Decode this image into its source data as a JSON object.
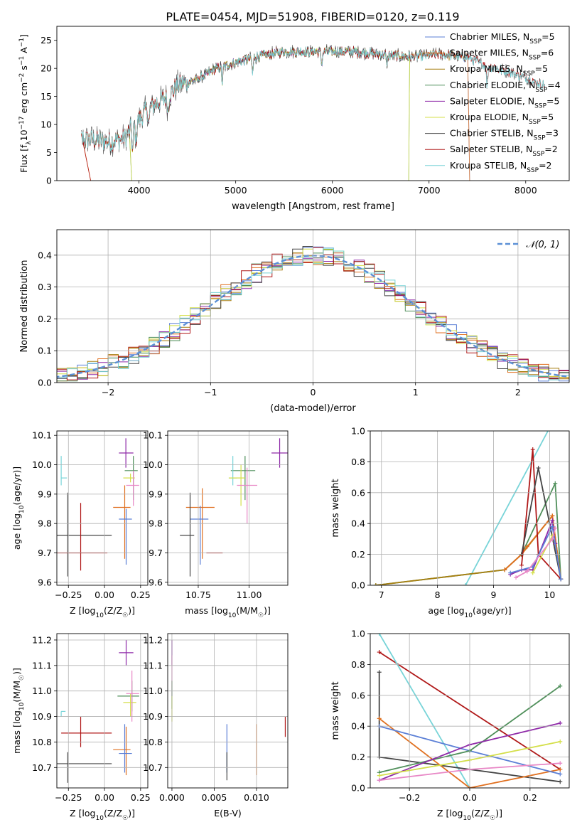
{
  "figure": {
    "title": "PLATE=0454, MJD=51908, FIBERID=0120, z=0.119"
  },
  "model_colors": [
    "#5b7fd6",
    "#e07020",
    "#a77f10",
    "#4f8f5a",
    "#8f2aa8",
    "#d4df4a",
    "#444444",
    "#b01818",
    "#78d4d8"
  ],
  "extra_colors": {
    "pink": "#e887c6",
    "gray": "#888888",
    "normal_curve": "#5b8fd6"
  },
  "chart_data": [
    {
      "id": "spectrum",
      "type": "line",
      "title": "PLATE=0454, MJD=51908, FIBERID=0120, z=0.119",
      "xlabel": "wavelength [Angstrom, rest frame]",
      "ylabel": "Flux [f_λ10^-17 erg cm^-2 s^-1 A^-1]",
      "xlim": [
        3150,
        8450
      ],
      "ylim": [
        0,
        27.5
      ],
      "xticks": [
        4000,
        5000,
        6000,
        7000,
        8000
      ],
      "yticks": [
        0,
        5,
        10,
        15,
        20,
        25
      ],
      "grid": false,
      "legend_position": "right",
      "series": [
        {
          "name": "Chabrier MILES, N_SSP=5",
          "x_range": [
            3400,
            7400
          ]
        },
        {
          "name": "Salpeter MILES, N_SSP=6",
          "x_range": [
            3400,
            7400
          ]
        },
        {
          "name": "Kroupa MILES, N_SSP=5",
          "x_range": [
            3400,
            7400
          ]
        },
        {
          "name": "Chabrier ELODIE, N_SSP=4",
          "x_range": [
            3900,
            6800
          ]
        },
        {
          "name": "Salpeter ELODIE, N_SSP=5",
          "x_range": [
            3900,
            6800
          ]
        },
        {
          "name": "Kroupa ELODIE, N_SSP=5",
          "x_range": [
            3900,
            6800
          ]
        },
        {
          "name": "Chabrier STELIB, N_SSP=3",
          "x_range": [
            3400,
            8200
          ]
        },
        {
          "name": "Salpeter STELIB, N_SSP=2",
          "x_range": [
            3400,
            8200
          ]
        },
        {
          "name": "Kroupa STELIB, N_SSP=2",
          "x_range": [
            3400,
            8200
          ]
        }
      ],
      "continuum_points": [
        [
          3400,
          7.5
        ],
        [
          3700,
          7
        ],
        [
          3850,
          7.5
        ],
        [
          3950,
          10
        ],
        [
          4100,
          13
        ],
        [
          4300,
          15
        ],
        [
          4400,
          17
        ],
        [
          4600,
          18
        ],
        [
          4800,
          20
        ],
        [
          5000,
          21
        ],
        [
          5200,
          22
        ],
        [
          5500,
          23
        ],
        [
          5800,
          23
        ],
        [
          6200,
          23
        ],
        [
          6500,
          22.5
        ],
        [
          6800,
          22
        ],
        [
          7100,
          22.5
        ],
        [
          7400,
          22
        ],
        [
          7600,
          20.5
        ],
        [
          7900,
          19
        ],
        [
          8200,
          17
        ]
      ]
    },
    {
      "id": "residual_histogram",
      "type": "histogram",
      "xlabel": "(data-model)/error",
      "ylabel": "Normed distribution",
      "xlim": [
        -2.5,
        2.5
      ],
      "ylim": [
        0,
        0.48
      ],
      "xticks": [
        -2,
        -1,
        0,
        1,
        2
      ],
      "xtick_labels": [
        "−2",
        "−1",
        "0",
        "1",
        "2"
      ],
      "yticks": [
        0,
        0.1,
        0.2,
        0.3,
        0.4
      ],
      "ytick_labels": [
        "0.0",
        "0.1",
        "0.2",
        "0.3",
        "0.4"
      ],
      "grid": true,
      "bin_width": 0.1,
      "legend": [
        "𝒩(0, 1)"
      ],
      "legend_position": "top-right"
    },
    {
      "id": "age_vs_Z",
      "type": "scatter",
      "xlabel": "Z [log10(Z/Z☉)]",
      "ylabel": "age  [log10(age/yr)]",
      "xlim": [
        -0.33,
        0.3
      ],
      "ylim": [
        9.59,
        10.115
      ],
      "xticks": [
        -0.25,
        0,
        0.25
      ],
      "xtick_labels": [
        "−0.25",
        "0.00",
        "0.25"
      ],
      "yticks": [
        9.6,
        9.7,
        9.8,
        9.9,
        10.0,
        10.1
      ],
      "ytick_labels": [
        "9.6",
        "9.7",
        "9.8",
        "9.9",
        "10.0",
        "10.1"
      ],
      "points": [
        {
          "x": 0.148,
          "y": 10.04,
          "x0": 0.1,
          "x1": 0.2,
          "y0": 9.99,
          "y1": 10.09,
          "c": 4
        },
        {
          "x": 0.2,
          "y": 9.98,
          "x0": 0.14,
          "x1": 0.23,
          "y0": 9.88,
          "y1": 10.03,
          "c": 3
        },
        {
          "x": -0.3,
          "y": 9.955,
          "x0": -0.3,
          "x1": -0.26,
          "y0": 9.93,
          "y1": 10.03,
          "c": 8
        },
        {
          "x": 0.18,
          "y": 9.955,
          "x0": 0.13,
          "x1": 0.21,
          "y0": 9.94,
          "y1": 9.97,
          "c": 5
        },
        {
          "x": 0.2,
          "y": 9.93,
          "x0": 0.15,
          "x1": 0.24,
          "y0": 9.86,
          "y1": 9.98,
          "c": "pink"
        },
        {
          "x": 0.14,
          "y": 9.855,
          "x0": 0.06,
          "x1": 0.18,
          "y0": 9.68,
          "y1": 9.93,
          "c": 1
        },
        {
          "x": 0.15,
          "y": 9.815,
          "x0": 0.1,
          "x1": 0.19,
          "y0": 9.66,
          "y1": 9.85,
          "c": 0
        },
        {
          "x": -0.255,
          "y": 9.76,
          "x0": -0.33,
          "x1": 0.05,
          "y0": 9.62,
          "y1": 9.905,
          "c": 6
        },
        {
          "x": -0.165,
          "y": 9.7,
          "x0": -0.33,
          "x1": 0.02,
          "y0": 9.64,
          "y1": 9.87,
          "c": 7
        }
      ]
    },
    {
      "id": "age_vs_mass",
      "type": "scatter",
      "xlabel": "mass [log10(M/M☉)]",
      "ylabel": "",
      "xlim": [
        10.6,
        11.19
      ],
      "ylim": [
        9.59,
        10.115
      ],
      "xticks": [
        10.75,
        11.0
      ],
      "xtick_labels": [
        "10.75",
        "11.00"
      ],
      "yticks": [
        9.6,
        9.7,
        9.8,
        9.9,
        10.0,
        10.1
      ],
      "ytick_labels": [
        "9.6",
        "9.7",
        "9.8",
        "9.9",
        "10.0",
        "10.1"
      ],
      "points": [
        {
          "x": 11.15,
          "y": 10.04,
          "x0": 11.11,
          "x1": 11.19,
          "y0": 9.99,
          "y1": 10.09,
          "c": 4
        },
        {
          "x": 10.98,
          "y": 9.98,
          "x0": 10.91,
          "x1": 11.03,
          "y0": 9.88,
          "y1": 10.03,
          "c": 3
        },
        {
          "x": 10.92,
          "y": 9.955,
          "x0": 10.9,
          "x1": 10.94,
          "y0": 9.93,
          "y1": 10.03,
          "c": 8
        },
        {
          "x": 10.96,
          "y": 9.955,
          "x0": 10.9,
          "x1": 10.98,
          "y0": 9.86,
          "y1": 10.0,
          "c": 5
        },
        {
          "x": 10.99,
          "y": 9.93,
          "x0": 10.94,
          "x1": 11.04,
          "y0": 9.8,
          "y1": 9.99,
          "c": "pink"
        },
        {
          "x": 10.77,
          "y": 9.855,
          "x0": 10.69,
          "x1": 10.83,
          "y0": 9.68,
          "y1": 9.92,
          "c": 1
        },
        {
          "x": 10.76,
          "y": 9.815,
          "x0": 10.71,
          "x1": 10.8,
          "y0": 9.66,
          "y1": 9.86,
          "c": 0
        },
        {
          "x": 10.71,
          "y": 9.76,
          "x0": 10.66,
          "x1": 10.73,
          "y0": 9.62,
          "y1": 9.905,
          "c": 6
        },
        {
          "x": 10.83,
          "y": 9.7,
          "x0": 10.79,
          "x1": 10.87,
          "y0": 9.7,
          "y1": 9.7,
          "c": 7
        }
      ]
    },
    {
      "id": "mass_weight_vs_age",
      "type": "line",
      "xlabel": "age  [log10(age/yr)]",
      "ylabel": "mass weight",
      "xlim": [
        6.8,
        10.35
      ],
      "ylim": [
        0,
        1.0
      ],
      "xticks": [
        7,
        8,
        9,
        10
      ],
      "xtick_labels": [
        "7",
        "8",
        "9",
        "10"
      ],
      "yticks": [
        0,
        0.2,
        0.4,
        0.6,
        0.8,
        1.0
      ],
      "ytick_labels": [
        "0.0",
        "0.2",
        "0.4",
        "0.6",
        "0.8",
        "1.0"
      ],
      "series": [
        {
          "c": 8,
          "points": [
            [
              8.5,
              0
            ],
            [
              10.0,
              1.02
            ]
          ]
        },
        {
          "c": 3,
          "points": [
            [
              6.9,
              0
            ],
            [
              9.2,
              0.1
            ],
            [
              9.5,
              0.2
            ],
            [
              10.1,
              0.66
            ],
            [
              10.2,
              0.04
            ]
          ]
        },
        {
          "c": 2,
          "points": [
            [
              6.9,
              0
            ],
            [
              9.2,
              0.1
            ],
            [
              9.5,
              0.2
            ],
            [
              10.05,
              0.45
            ],
            [
              10.2,
              0.04
            ]
          ]
        },
        {
          "c": 1,
          "points": [
            [
              9.2,
              0.1
            ],
            [
              9.5,
              0.2
            ],
            [
              9.6,
              0.25
            ],
            [
              10.05,
              0.45
            ],
            [
              10.2,
              0.04
            ]
          ]
        },
        {
          "c": 7,
          "points": [
            [
              9.5,
              0.13
            ],
            [
              9.7,
              0.88
            ],
            [
              9.8,
              0.2
            ],
            [
              10.2,
              0.04
            ]
          ]
        },
        {
          "c": 6,
          "points": [
            [
              9.5,
              0.2
            ],
            [
              9.8,
              0.76
            ],
            [
              10.2,
              0.04
            ]
          ]
        },
        {
          "c": 4,
          "points": [
            [
              9.3,
              0.07
            ],
            [
              9.5,
              0.1
            ],
            [
              9.7,
              0.1
            ],
            [
              10.05,
              0.42
            ],
            [
              10.1,
              0.27
            ]
          ]
        },
        {
          "c": 0,
          "points": [
            [
              9.3,
              0.08
            ],
            [
              9.7,
              0.12
            ],
            [
              10.05,
              0.38
            ],
            [
              10.2,
              0.04
            ]
          ]
        },
        {
          "c": 5,
          "points": [
            [
              9.7,
              0.08
            ],
            [
              10.05,
              0.32
            ]
          ]
        },
        {
          "c": "pink",
          "points": [
            [
              9.4,
              0.05
            ],
            [
              9.6,
              0.09
            ],
            [
              10.05,
              0.3
            ],
            [
              10.1,
              0.37
            ]
          ]
        }
      ]
    },
    {
      "id": "mass_vs_Z",
      "type": "scatter",
      "xlabel": "Z [log10(Z/Z☉)]",
      "ylabel": "mass [log10(M/M☉)]",
      "xlim": [
        -0.33,
        0.3
      ],
      "ylim": [
        10.62,
        11.225
      ],
      "xticks": [
        -0.25,
        0,
        0.25
      ],
      "xtick_labels": [
        "−0.25",
        "0.00",
        "0.25"
      ],
      "yticks": [
        10.7,
        10.8,
        10.9,
        11.0,
        11.1,
        11.2
      ],
      "ytick_labels": [
        "10.7",
        "10.8",
        "10.9",
        "11.0",
        "11.1",
        "11.2"
      ],
      "points": [
        {
          "x": 0.15,
          "y": 11.15,
          "x0": 0.1,
          "x1": 0.2,
          "y0": 11.1,
          "y1": 11.2,
          "c": 4
        },
        {
          "x": 0.19,
          "y": 10.98,
          "x0": 0.09,
          "x1": 0.24,
          "y0": 10.92,
          "y1": 11.04,
          "c": 3
        },
        {
          "x": -0.3,
          "y": 10.92,
          "x0": -0.3,
          "x1": -0.27,
          "y0": 10.9,
          "y1": 10.92,
          "c": 8
        },
        {
          "x": 0.18,
          "y": 10.955,
          "x0": 0.13,
          "x1": 0.22,
          "y0": 10.9,
          "y1": 10.99,
          "c": 5
        },
        {
          "x": 0.19,
          "y": 10.99,
          "x0": 0.15,
          "x1": 0.24,
          "y0": 10.88,
          "y1": 11.08,
          "c": "pink"
        },
        {
          "x": 0.15,
          "y": 10.77,
          "x0": 0.06,
          "x1": 0.18,
          "y0": 10.67,
          "y1": 10.86,
          "c": 1
        },
        {
          "x": 0.14,
          "y": 10.755,
          "x0": 0.1,
          "x1": 0.19,
          "y0": 10.68,
          "y1": 10.87,
          "c": 0
        },
        {
          "x": -0.255,
          "y": 10.715,
          "x0": -0.33,
          "x1": 0.05,
          "y0": 10.64,
          "y1": 10.76,
          "c": 6
        },
        {
          "x": -0.165,
          "y": 10.835,
          "x0": -0.3,
          "x1": 0.05,
          "y0": 10.78,
          "y1": 10.9,
          "c": 7
        }
      ]
    },
    {
      "id": "mass_vs_EBV",
      "type": "scatter",
      "xlabel": "E(B-V)",
      "ylabel": "",
      "xlim": [
        -0.0005,
        0.0137
      ],
      "ylim": [
        10.62,
        11.225
      ],
      "xticks": [
        0,
        0.005,
        0.01
      ],
      "xtick_labels": [
        "0.000",
        "0.005",
        "0.010"
      ],
      "yticks": [
        10.7,
        10.8,
        10.9,
        11.0,
        11.1,
        11.2
      ],
      "ytick_labels": [
        "10.7",
        "10.8",
        "10.9",
        "11.0",
        "11.1",
        "11.2"
      ],
      "points": [
        {
          "x": 0.0,
          "y": 11.15,
          "x0": 0.0,
          "x1": 0.0,
          "y0": 11.1,
          "y1": 11.2,
          "c": 4
        },
        {
          "x": 0.0,
          "y": 11.07,
          "x0": 0.0,
          "x1": 0.0,
          "y0": 10.98,
          "y1": 11.14,
          "c": "pink"
        },
        {
          "x": 0.0,
          "y": 10.98,
          "x0": 0.0,
          "x1": 0.0,
          "y0": 10.93,
          "y1": 11.04,
          "c": 3
        },
        {
          "x": 0.0,
          "y": 10.93,
          "x0": 0.0,
          "x1": 0.0,
          "y0": 10.88,
          "y1": 10.98,
          "c": 5
        },
        {
          "x": 0.0065,
          "y": 10.77,
          "x0": 0.0065,
          "x1": 0.0065,
          "y0": 10.68,
          "y1": 10.87,
          "c": 0
        },
        {
          "x": 0.0065,
          "y": 10.715,
          "x0": 0.0065,
          "x1": 0.0065,
          "y0": 10.65,
          "y1": 10.76,
          "c": 6
        },
        {
          "x": 0.01,
          "y": 10.77,
          "x0": 0.01,
          "x1": 0.01,
          "y0": 10.67,
          "y1": 10.87,
          "c": 1
        },
        {
          "x": 0.0134,
          "y": 10.86,
          "x0": 0.0134,
          "x1": 0.0134,
          "y0": 10.82,
          "y1": 10.9,
          "c": 7
        }
      ]
    },
    {
      "id": "mass_weight_vs_Z",
      "type": "line",
      "xlabel": "Z [log10(Z/Z☉)]",
      "ylabel": "mass weight",
      "xlim": [
        -0.33,
        0.33
      ],
      "ylim": [
        0,
        1.0
      ],
      "xticks": [
        -0.2,
        0,
        0.2
      ],
      "xtick_labels": [
        "−0.2",
        "0.0",
        "0.2"
      ],
      "yticks": [
        0,
        0.2,
        0.4,
        0.6,
        0.8,
        1.0
      ],
      "ytick_labels": [
        "0.0",
        "0.2",
        "0.4",
        "0.6",
        "0.8",
        "1.0"
      ],
      "series": [
        {
          "c": 7,
          "points": [
            [
              -0.3,
              0.88
            ],
            [
              0.3,
              0.12
            ]
          ]
        },
        {
          "c": 8,
          "points": [
            [
              -0.3,
              1.0
            ],
            [
              0.0,
              0.0
            ]
          ]
        },
        {
          "c": 6,
          "points": [
            [
              -0.3,
              0.75
            ],
            [
              -0.3,
              0.2
            ],
            [
              0.3,
              0.04
            ]
          ]
        },
        {
          "c": 1,
          "points": [
            [
              -0.3,
              0.45
            ],
            [
              0.0,
              0.0
            ],
            [
              0.3,
              0.12
            ]
          ]
        },
        {
          "c": 0,
          "points": [
            [
              -0.3,
              0.4
            ],
            [
              0.0,
              0.24
            ],
            [
              0.3,
              0.09
            ]
          ]
        },
        {
          "c": 3,
          "points": [
            [
              -0.3,
              0.1
            ],
            [
              0.0,
              0.24
            ],
            [
              0.3,
              0.66
            ]
          ]
        },
        {
          "c": 4,
          "points": [
            [
              -0.3,
              0.05
            ],
            [
              0.0,
              0.28
            ],
            [
              0.3,
              0.42
            ]
          ]
        },
        {
          "c": 5,
          "points": [
            [
              -0.3,
              0.08
            ],
            [
              0.0,
              0.18
            ],
            [
              0.3,
              0.3
            ]
          ]
        },
        {
          "c": "pink",
          "points": [
            [
              -0.3,
              0.05
            ],
            [
              0.0,
              0.12
            ],
            [
              0.3,
              0.16
            ]
          ]
        }
      ]
    }
  ]
}
